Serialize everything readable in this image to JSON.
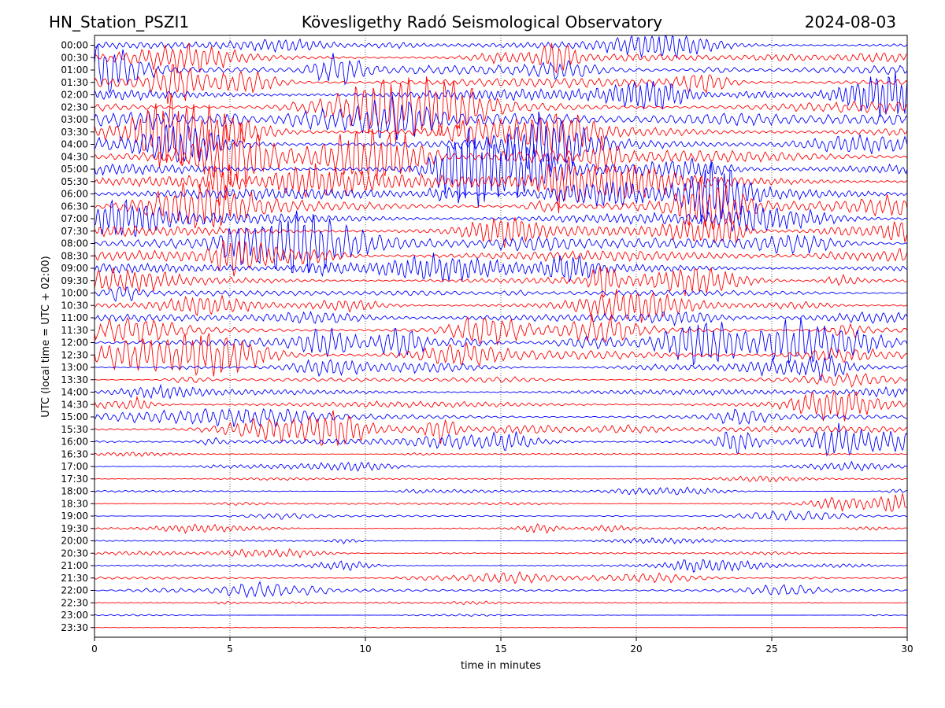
{
  "header": {
    "station": "HN_Station_PSZI1",
    "observatory": "Kövesligethy Radó Seismological Observatory",
    "date": "2024-08-03"
  },
  "chart_data": {
    "type": "line",
    "title": "Kövesligethy Radó Seismological Observatory",
    "xlabel": "time in minutes",
    "ylabel": "UTC (local time = UTC + 02:00)",
    "xlim": [
      0,
      30
    ],
    "x_ticks": [
      0,
      5,
      10,
      15,
      20,
      25,
      30
    ],
    "grid": "vertical dotted",
    "trace_colors": [
      "#0000ff",
      "#ff0000"
    ],
    "rows": [
      {
        "label": "00:00",
        "amplitude": 0.55
      },
      {
        "label": "00:30",
        "amplitude": 0.6
      },
      {
        "label": "01:00",
        "amplitude": 0.75
      },
      {
        "label": "01:30",
        "amplitude": 0.8
      },
      {
        "label": "02:00",
        "amplitude": 0.9
      },
      {
        "label": "02:30",
        "amplitude": 0.95
      },
      {
        "label": "03:00",
        "amplitude": 1.0
      },
      {
        "label": "03:30",
        "amplitude": 1.0
      },
      {
        "label": "04:00",
        "amplitude": 1.0
      },
      {
        "label": "04:30",
        "amplitude": 1.0
      },
      {
        "label": "05:00",
        "amplitude": 1.0
      },
      {
        "label": "05:30",
        "amplitude": 0.95
      },
      {
        "label": "06:00",
        "amplitude": 0.95
      },
      {
        "label": "06:30",
        "amplitude": 0.9
      },
      {
        "label": "07:00",
        "amplitude": 0.9
      },
      {
        "label": "07:30",
        "amplitude": 0.85
      },
      {
        "label": "08:00",
        "amplitude": 0.85
      },
      {
        "label": "08:30",
        "amplitude": 0.85
      },
      {
        "label": "09:00",
        "amplitude": 0.8
      },
      {
        "label": "09:30",
        "amplitude": 0.6
      },
      {
        "label": "10:00",
        "amplitude": 0.45
      },
      {
        "label": "10:30",
        "amplitude": 0.55
      },
      {
        "label": "11:00",
        "amplitude": 0.6
      },
      {
        "label": "11:30",
        "amplitude": 0.7
      },
      {
        "label": "12:00",
        "amplitude": 0.75
      },
      {
        "label": "12:30",
        "amplitude": 0.75
      },
      {
        "label": "13:00",
        "amplitude": 0.3
      },
      {
        "label": "13:30",
        "amplitude": 0.3
      },
      {
        "label": "14:00",
        "amplitude": 0.45
      },
      {
        "label": "14:30",
        "amplitude": 0.5
      },
      {
        "label": "15:00",
        "amplitude": 0.45
      },
      {
        "label": "15:30",
        "amplitude": 0.55
      },
      {
        "label": "16:00",
        "amplitude": 0.5
      },
      {
        "label": "16:30",
        "amplitude": 0.12
      },
      {
        "label": "17:00",
        "amplitude": 0.12
      },
      {
        "label": "17:30",
        "amplitude": 0.12
      },
      {
        "label": "18:00",
        "amplitude": 0.15
      },
      {
        "label": "18:30",
        "amplitude": 0.15
      },
      {
        "label": "19:00",
        "amplitude": 0.15
      },
      {
        "label": "19:30",
        "amplitude": 0.15
      },
      {
        "label": "20:00",
        "amplitude": 0.12
      },
      {
        "label": "20:30",
        "amplitude": 0.12
      },
      {
        "label": "21:00",
        "amplitude": 0.18
      },
      {
        "label": "21:30",
        "amplitude": 0.2
      },
      {
        "label": "22:00",
        "amplitude": 0.25
      },
      {
        "label": "22:30",
        "amplitude": 0.08
      },
      {
        "label": "23:00",
        "amplitude": 0.04
      },
      {
        "label": "23:30",
        "amplitude": 0.03
      }
    ]
  }
}
